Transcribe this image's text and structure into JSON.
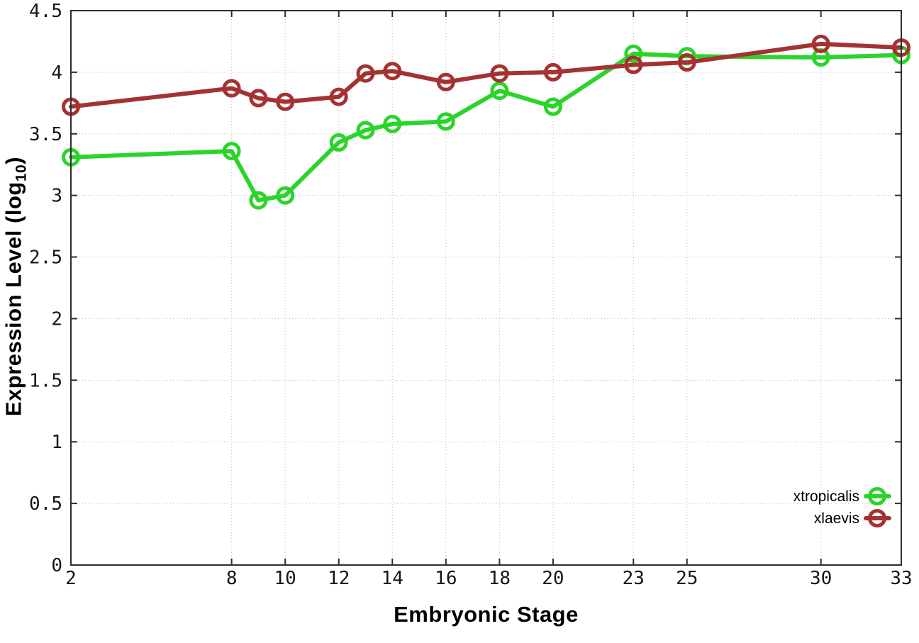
{
  "background": "#ffffff",
  "labels": {
    "xlabel": "Embryonic Stage",
    "ylabel_main": "Expression Level (log",
    "ylabel_sub": "10",
    "ylabel_close": ")"
  },
  "chart_data": {
    "type": "line",
    "title": "",
    "xlabel": "Embryonic Stage",
    "ylabel": "Expression Level (log10)",
    "x": [
      2,
      8,
      9,
      10,
      12,
      13,
      14,
      16,
      18,
      20,
      23,
      25,
      30,
      33
    ],
    "series": [
      {
        "name": "xtropicalis",
        "color": "#2bd42b",
        "marker": "open-circle",
        "values": [
          3.31,
          3.36,
          2.96,
          3.0,
          3.43,
          3.53,
          3.58,
          3.6,
          3.85,
          3.72,
          4.15,
          4.13,
          4.12,
          4.14
        ]
      },
      {
        "name": "xlaevis",
        "color": "#a53232",
        "marker": "open-circle",
        "values": [
          3.72,
          3.87,
          3.79,
          3.76,
          3.8,
          3.99,
          4.01,
          3.92,
          3.99,
          4.0,
          4.06,
          4.08,
          4.23,
          4.2
        ]
      }
    ],
    "xlim": [
      2,
      33
    ],
    "ylim": [
      0,
      4.5
    ],
    "xticks": {
      "values": [
        2,
        8,
        10,
        12,
        14,
        16,
        18,
        20,
        23,
        25,
        30,
        33
      ],
      "labels": [
        "2",
        "8",
        "10",
        "12",
        "14",
        "16",
        "18",
        "20",
        "23",
        "25",
        "30",
        "33"
      ]
    },
    "yticks": {
      "values": [
        0,
        0.5,
        1,
        1.5,
        2,
        2.5,
        3,
        3.5,
        4,
        4.5
      ],
      "labels": [
        "0",
        "0.5",
        "1",
        "1.5",
        "2",
        "2.5",
        "3",
        "3.5",
        "4",
        "4.5"
      ]
    },
    "grid": true,
    "grid_style": "dotted",
    "legend_position": "inside-bottom-right",
    "frame_color": "#2e2e2e"
  }
}
